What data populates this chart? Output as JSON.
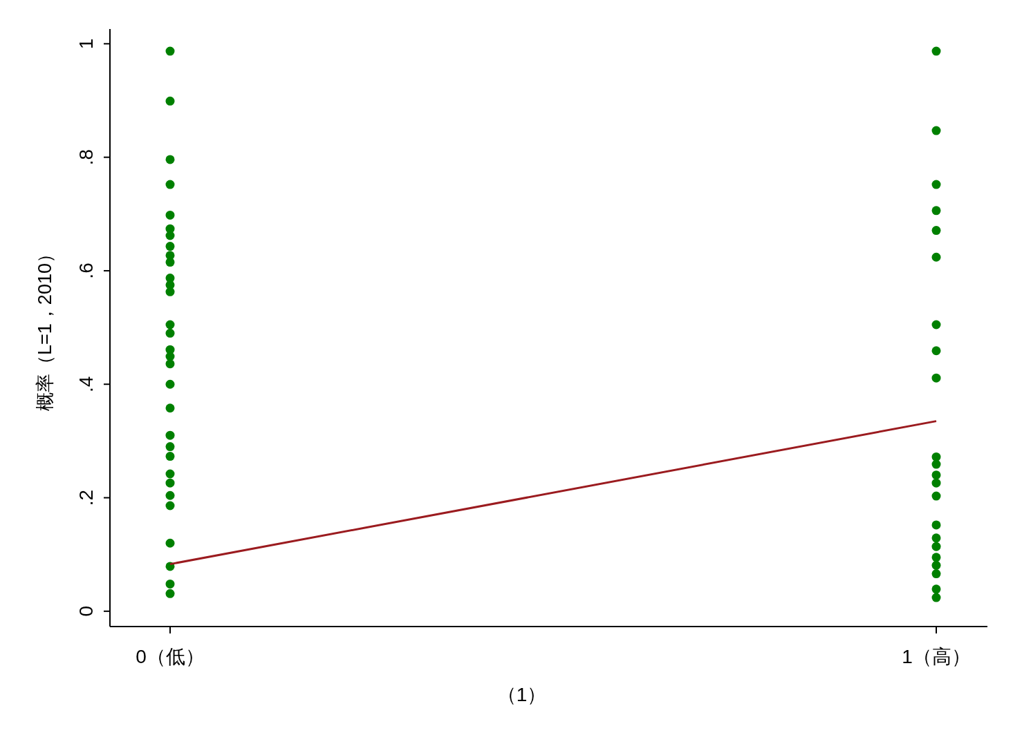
{
  "chart_data": {
    "type": "scatter",
    "xlabel": "（1）",
    "ylabel": "概率（L=1，2010）",
    "categories": [
      "0（低）",
      "1（高）"
    ],
    "ylim": [
      -0.027,
      1.026
    ],
    "yticks": [
      0,
      {
        "value": 0.2,
        "label": ".2"
      },
      {
        "value": 0.4,
        "label": ".4"
      },
      {
        "value": 0.6,
        "label": ".6"
      },
      {
        "value": 0.8,
        "label": ".8"
      },
      1
    ],
    "series": [
      {
        "marker": "circle",
        "color": "#008000",
        "x": [
          "0（低）",
          "0（低）",
          "0（低）",
          "0（低）",
          "0（低）",
          "0（低）",
          "0（低）",
          "0（低）",
          "0（低）",
          "0（低）",
          "0（低）",
          "0（低）",
          "0（低）",
          "0（低）",
          "0（低）",
          "0（低）",
          "0（低）",
          "0（低）",
          "0（低）",
          "0（低）",
          "0（低）",
          "0（低）",
          "0（低）",
          "0（低）",
          "0（低）",
          "0（低）",
          "0（低）",
          "0（低）",
          "0（低）",
          "0（低）",
          "0（低）",
          "1（高）",
          "1（高）",
          "1（高）",
          "1（高）",
          "1（高）",
          "1（高）",
          "1（高）",
          "1（高）",
          "1（高）",
          "1（高）",
          "1（高）",
          "1（高）",
          "1（高）",
          "1（高）",
          "1（高）",
          "1（高）",
          "1（高）",
          "1（高）",
          "1（高）",
          "1（高）",
          "1（高）",
          "1（高）"
        ],
        "values": [
          0.987,
          0.899,
          0.796,
          0.752,
          0.698,
          0.674,
          0.662,
          0.643,
          0.627,
          0.615,
          0.587,
          0.575,
          0.563,
          0.505,
          0.49,
          0.461,
          0.449,
          0.436,
          0.4,
          0.358,
          0.31,
          0.29,
          0.273,
          0.242,
          0.226,
          0.204,
          0.186,
          0.12,
          0.079,
          0.048,
          0.031,
          0.987,
          0.847,
          0.752,
          0.706,
          0.671,
          0.624,
          0.505,
          0.459,
          0.411,
          0.272,
          0.259,
          0.24,
          0.226,
          0.203,
          0.152,
          0.129,
          0.114,
          0.095,
          0.081,
          0.066,
          0.039,
          0.024
        ]
      },
      {
        "type": "line",
        "color": "#9b1b1f",
        "x": [
          "0（低）",
          "1（高）"
        ],
        "values": [
          0.083,
          0.335
        ]
      }
    ]
  }
}
